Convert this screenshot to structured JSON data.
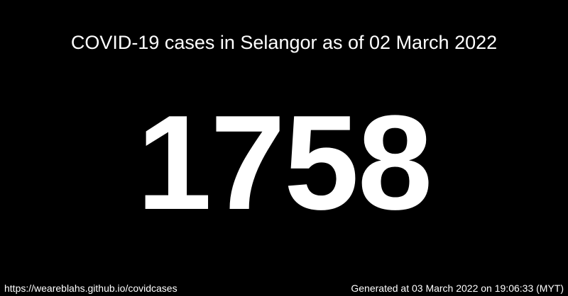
{
  "header": {
    "title": "COVID-19 cases in Selangor as of 02 March 2022"
  },
  "main": {
    "case_count": "1758"
  },
  "footer": {
    "url": "https://weareblahs.github.io/covidcases",
    "generated": "Generated at 03 March 2022 on 19:06:33 (MYT)"
  },
  "colors": {
    "background": "#000000",
    "text": "#ffffff"
  }
}
